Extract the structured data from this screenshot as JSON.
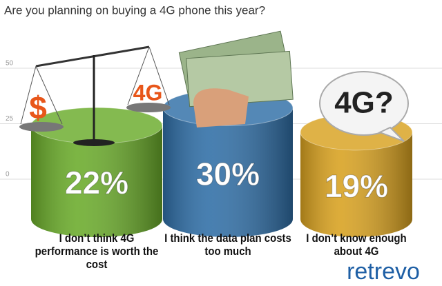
{
  "chart_data": {
    "type": "cylinder",
    "title": "Are you planning on buying a 4G phone this year?",
    "categories": [
      "I don’t think 4G performance is worth the cost",
      "I think the data plan costs too much",
      "I don’t know enough about 4G"
    ],
    "values": [
      22,
      30,
      19
    ],
    "value_labels": [
      "22%",
      "30%",
      "19%"
    ],
    "colors": [
      "#6aab2a",
      "#2f6ea6",
      "#d8a11f"
    ],
    "ylim": [
      0,
      50
    ],
    "yticks": [
      0,
      25,
      50
    ],
    "grid": true,
    "annotations": [
      "$",
      "4G",
      "4G?"
    ],
    "source": "retrevo"
  }
}
